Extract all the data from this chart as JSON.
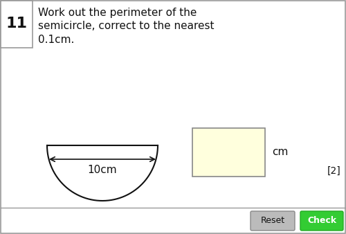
{
  "question_number": "11",
  "question_text_line1": "Work out the perimeter of the",
  "question_text_line2": "semicircle, correct to the nearest",
  "question_text_line3": "0.1cm.",
  "dimension_label": "10cm",
  "unit_label": "cm",
  "marks_label": "[2]",
  "reset_label": "Reset",
  "check_label": "Check",
  "bg_color": "#ffffff",
  "border_color": "#999999",
  "input_box_color": "#ffffdd",
  "reset_btn_color": "#bbbbbb",
  "check_btn_color": "#33cc33",
  "text_color": "#111111",
  "semicircle_color": "#111111",
  "fig_width": 5.0,
  "fig_height": 3.38,
  "dpi": 100
}
